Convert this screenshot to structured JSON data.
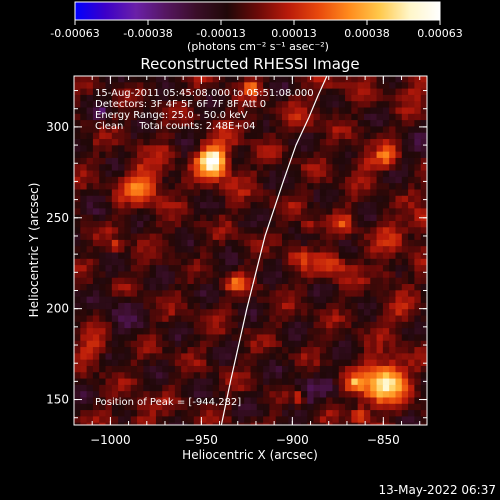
{
  "footer_timestamp": "13-May-2022 06:37",
  "chart_data": {
    "type": "heatmap",
    "title": "Reconstructed RHESSI Image",
    "xlabel": "Heliocentric X (arcsec)",
    "ylabel": "Heliocentric Y (arcsec)",
    "xlim": [
      -1020,
      -826
    ],
    "ylim": [
      136,
      328
    ],
    "xticks": [
      -1000,
      -950,
      -900,
      -850
    ],
    "yticks": [
      150,
      200,
      250,
      300
    ],
    "xtick_labels": [
      "−1000",
      "−950",
      "−900",
      "−850"
    ],
    "ytick_labels": [
      "150",
      "200",
      "250",
      "300"
    ],
    "colorbar": {
      "range": [
        -0.00063,
        0.00063
      ],
      "tick_labels": [
        "-0.00063",
        "-0.00038",
        "-0.00013",
        "0.00013",
        "0.00038",
        "0.00063"
      ],
      "unit_label": "(photons cm⁻² s⁻¹ asec⁻²)",
      "colormap": [
        "#0000ff",
        "#3c00c8",
        "#6a20a8",
        "#551660",
        "#3a0e28",
        "#200808",
        "#6a0a08",
        "#b81a0a",
        "#e8480c",
        "#ff8a1c",
        "#ffc84a",
        "#fff6c8",
        "#ffffff"
      ]
    },
    "annotations": [
      "15-Aug-2011 05:45:08.000 to 05:51:08.000",
      "Detectors: 3F 4F 5F 6F 7F 8F  Att 0",
      "Energy Range: 25.0 - 50.0 keV",
      "Clean     Total counts: 2.48E+04"
    ],
    "peak_label": "Position of Peak = [-944,282]",
    "peak": [
      -944,
      282
    ],
    "limb_curve": {
      "x": [
        -939,
        -934,
        -925,
        -915,
        -905,
        -898,
        -891,
        -886,
        -881
      ],
      "y": [
        136,
        160,
        200,
        240,
        270,
        290,
        305,
        317,
        328
      ]
    }
  }
}
